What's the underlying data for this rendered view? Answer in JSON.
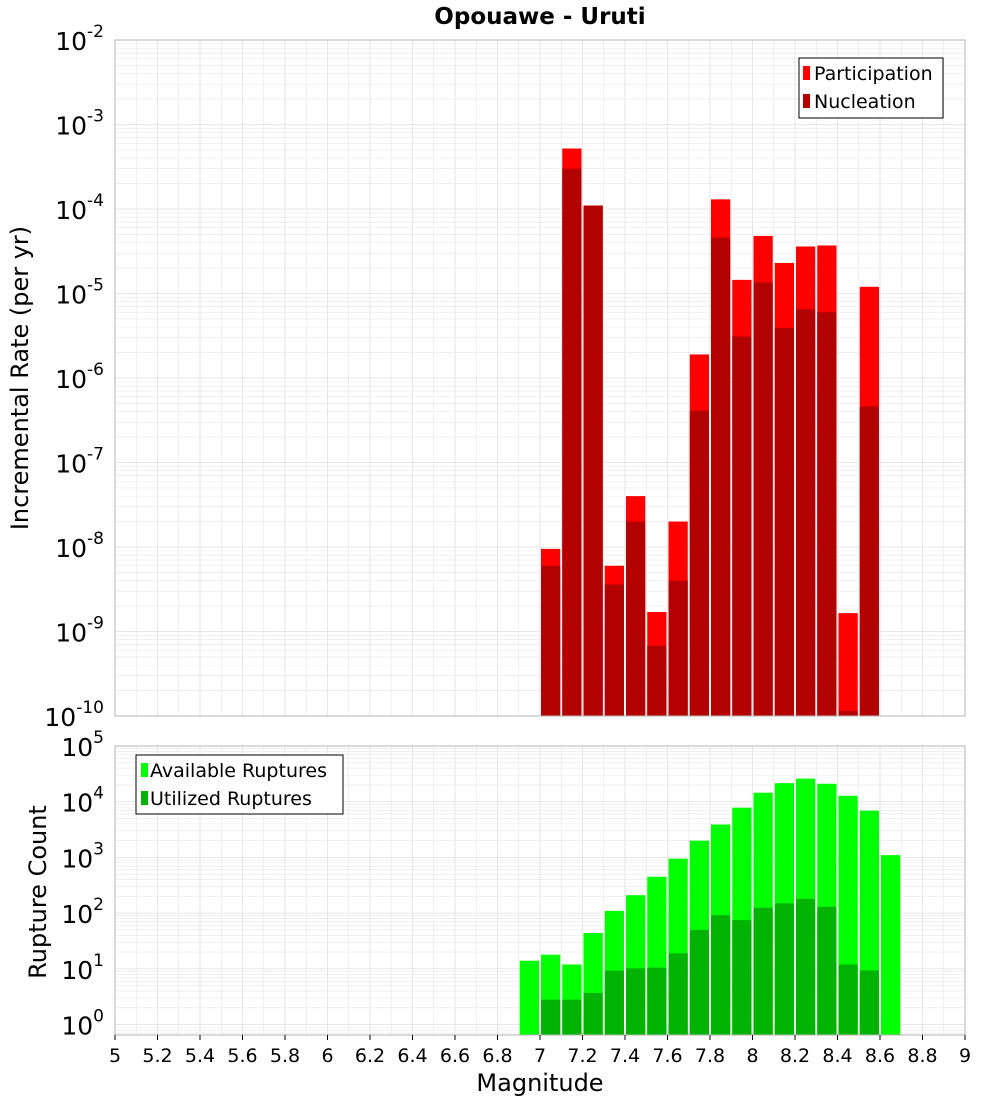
{
  "title": "Opouawe - Uruti",
  "colors": {
    "participation": "#ff0000",
    "nucleation": "#b30000",
    "available": "#00ff00",
    "utilized": "#00b300",
    "grid": "#e6e6e6",
    "frame": "#b4b4b4"
  },
  "chart_data": [
    {
      "type": "bar",
      "name": "rate-plot",
      "ylabel": "Incremental Rate (per yr)",
      "yscale": "log",
      "ylim": [
        1e-10,
        0.01
      ],
      "yticks": [
        {
          "base": "10",
          "exp": "-10",
          "value": 1e-10
        },
        {
          "base": "10",
          "exp": "-9",
          "value": 1e-09
        },
        {
          "base": "10",
          "exp": "-8",
          "value": 1e-08
        },
        {
          "base": "10",
          "exp": "-7",
          "value": 1e-07
        },
        {
          "base": "10",
          "exp": "-6",
          "value": 1e-06
        },
        {
          "base": "10",
          "exp": "-5",
          "value": 1e-05
        },
        {
          "base": "10",
          "exp": "-4",
          "value": 0.0001
        },
        {
          "base": "10",
          "exp": "-3",
          "value": 0.001
        },
        {
          "base": "10",
          "exp": "-2",
          "value": 0.01
        }
      ],
      "grid": true,
      "legend_position": "top-right",
      "legend": [
        "Participation",
        "Nucleation"
      ],
      "bin_width": 0.1,
      "x": [
        7.05,
        7.15,
        7.25,
        7.35,
        7.45,
        7.55,
        7.65,
        7.75,
        7.85,
        7.95,
        8.05,
        8.15,
        8.25,
        8.35,
        8.45,
        8.55
      ],
      "series": [
        {
          "name": "Participation",
          "values": [
            9.5e-09,
            0.00052,
            0.00011,
            6e-09,
            4e-08,
            1.7e-09,
            2e-08,
            1.9e-06,
            0.00013,
            1.45e-05,
            4.8e-05,
            2.3e-05,
            3.6e-05,
            3.7e-05,
            1.65e-09,
            1.2e-05
          ]
        },
        {
          "name": "Nucleation",
          "values": [
            6e-09,
            0.0003,
            0.00011,
            3.6e-09,
            2e-08,
            6.8e-10,
            4e-09,
            4.1e-07,
            4.6e-05,
            3.1e-06,
            1.35e-05,
            3.9e-06,
            6.5e-06,
            6e-06,
            1.15e-10,
            4.6e-07
          ]
        }
      ]
    },
    {
      "type": "bar",
      "name": "count-plot",
      "xlabel": "Magnitude",
      "ylabel": "Rupture Count",
      "yscale": "log",
      "ylim": [
        0.65,
        100000.0
      ],
      "yticks": [
        {
          "base": "10",
          "exp": "0",
          "value": 1
        },
        {
          "base": "10",
          "exp": "1",
          "value": 10
        },
        {
          "base": "10",
          "exp": "2",
          "value": 100
        },
        {
          "base": "10",
          "exp": "3",
          "value": 1000
        },
        {
          "base": "10",
          "exp": "4",
          "value": 10000
        },
        {
          "base": "10",
          "exp": "5",
          "value": 100000
        }
      ],
      "xlim": [
        5,
        9
      ],
      "xticks": [
        "5",
        "5.2",
        "5.4",
        "5.6",
        "5.8",
        "6",
        "6.2",
        "6.4",
        "6.6",
        "6.8",
        "7",
        "7.2",
        "7.4",
        "7.6",
        "7.8",
        "8",
        "8.2",
        "8.4",
        "8.6",
        "8.8",
        "9"
      ],
      "grid": true,
      "legend_position": "top-left",
      "legend": [
        "Available Ruptures",
        "Utilized Ruptures"
      ],
      "bin_width": 0.1,
      "x": [
        6.95,
        7.05,
        7.15,
        7.25,
        7.35,
        7.45,
        7.55,
        7.65,
        7.75,
        7.85,
        7.95,
        8.05,
        8.15,
        8.25,
        8.35,
        8.45,
        8.55,
        8.65
      ],
      "series": [
        {
          "name": "Available Ruptures",
          "values": [
            14,
            18,
            12,
            44,
            110,
            210,
            450,
            950,
            2000,
            3900,
            7800,
            14500,
            21500,
            26000,
            21000,
            12800,
            6900,
            1100
          ]
        },
        {
          "name": "Utilized Ruptures",
          "values": [
            null,
            2.8,
            2.8,
            3.7,
            9.3,
            10.2,
            10.5,
            19,
            50,
            92,
            75,
            125,
            150,
            180,
            130,
            12,
            9.4,
            null
          ]
        }
      ]
    }
  ]
}
